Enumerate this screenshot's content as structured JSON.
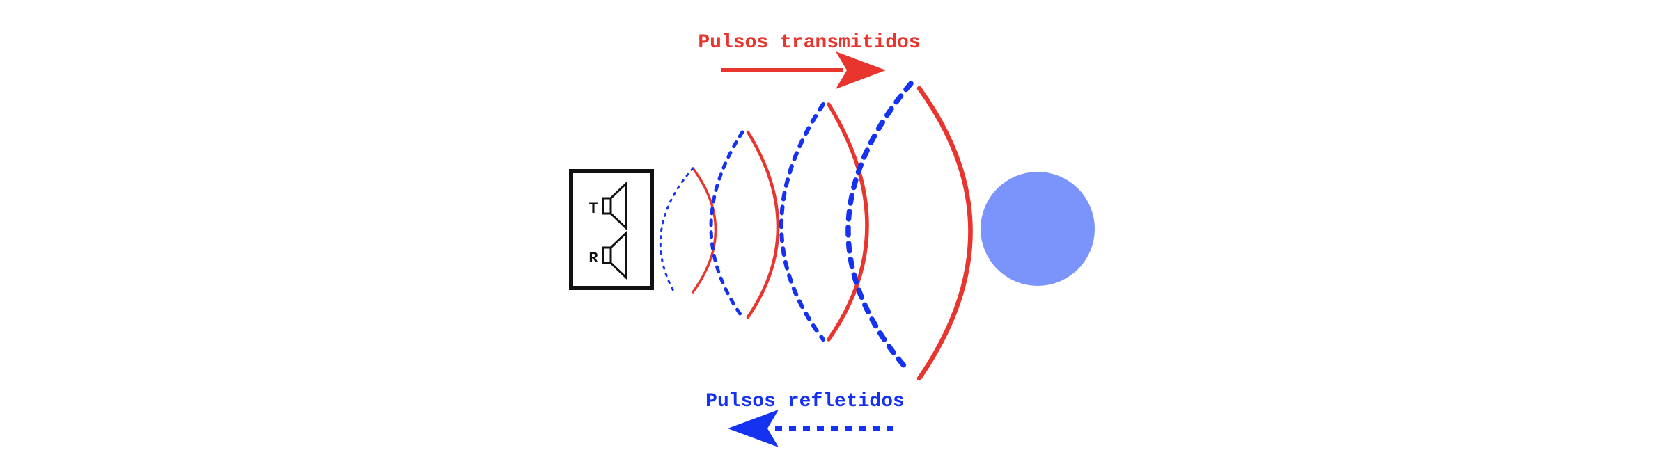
{
  "labels": {
    "transmitted": "Pulsos transmitidos",
    "reflected": "Pulsos refletidos",
    "transmitter": "T",
    "receiver": "R"
  },
  "colors": {
    "transmitted": "#e8352e",
    "reflected": "#1432f0",
    "target": "#7b94fb",
    "device": "#111111",
    "background": "#ffffff"
  }
}
